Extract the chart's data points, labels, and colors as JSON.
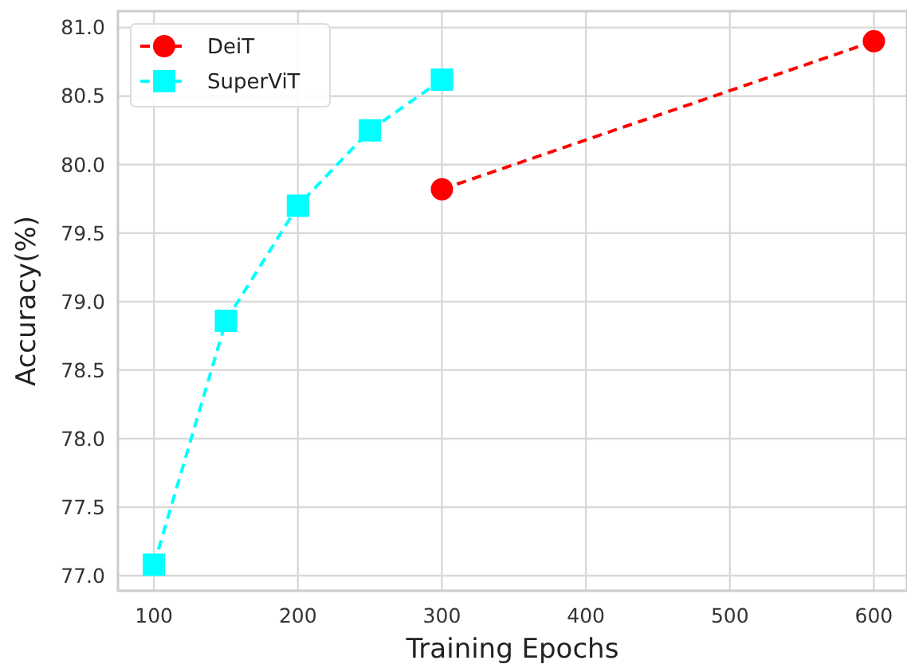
{
  "chart_data": {
    "type": "line",
    "xlabel": "Training Epochs",
    "ylabel": "Accuracy(%)",
    "xlim": [
      75,
      623
    ],
    "xticks": [
      100,
      200,
      300,
      400,
      500,
      600
    ],
    "ylim": [
      76.89,
      81.12
    ],
    "yticks": [
      {
        "value": 77,
        "label": "77.0"
      },
      {
        "value": 77.5,
        "label": "77.5"
      },
      {
        "value": 78,
        "label": "78.0"
      },
      {
        "value": 78.5,
        "label": "78.5"
      },
      {
        "value": 79,
        "label": "79.0"
      },
      {
        "value": 79.5,
        "label": "79.5"
      },
      {
        "value": 80,
        "label": "80.0"
      },
      {
        "value": 80.5,
        "label": "80.5"
      },
      {
        "value": 81,
        "label": "81.0"
      }
    ],
    "grid": true,
    "legend": "top left",
    "line_style": "dashed",
    "series": [
      {
        "name": "DeiT",
        "color": "#ff0000",
        "marker": "circle",
        "x": [
          300,
          600
        ],
        "values": [
          79.82,
          80.9
        ]
      },
      {
        "name": "SuperViT",
        "color": "#00ffff",
        "marker": "square",
        "x": [
          100,
          150,
          200,
          250,
          300
        ],
        "values": [
          77.08,
          78.86,
          79.7,
          80.25,
          80.62
        ]
      }
    ]
  }
}
